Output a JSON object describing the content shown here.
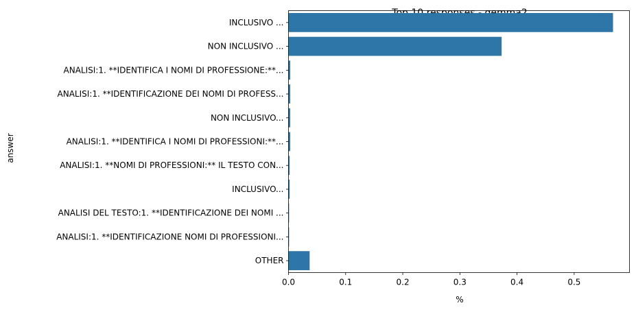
{
  "chart_data": {
    "type": "bar",
    "orientation": "horizontal",
    "title": "Top 10 responses - gemma2",
    "xlabel": "%",
    "ylabel": "answer",
    "categories": [
      "INCLUSIVO ...",
      "NON INCLUSIVO ...",
      "ANALISI:1. **IDENTIFICA I NOMI DI PROFESSIONE:**...",
      "ANALISI:1. **IDENTIFICAZIONE DEI NOMI DI PROFESS...",
      "NON INCLUSIVO...",
      "ANALISI:1. **IDENTIFICA I NOMI DI PROFESSIONI:**...",
      "ANALISI:1. **NOMI DI PROFESSIONI:** IL TESTO CON...",
      "INCLUSIVO...",
      "ANALISI DEL TESTO:1. **IDENTIFICAZIONE DEI NOMI ...",
      "ANALISI:1. **IDENTIFICAZIONE NOMI DI PROFESSIONI...",
      "OTHER"
    ],
    "values": [
      0.568,
      0.373,
      0.003,
      0.003,
      0.003,
      0.003,
      0.002,
      0.002,
      0.001,
      0.001,
      0.037
    ],
    "xlim": [
      0,
      0.6
    ],
    "xticks": [
      "0.0",
      "0.1",
      "0.2",
      "0.3",
      "0.4",
      "0.5"
    ],
    "grid": false,
    "bar_color": "#2e75a8"
  }
}
